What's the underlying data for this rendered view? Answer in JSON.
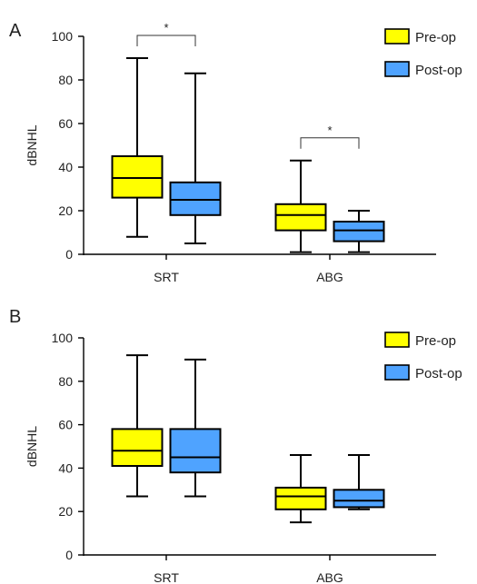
{
  "colors": {
    "pre": "#FFFF00",
    "post": "#4FA3FF",
    "stroke": "#000000",
    "bracket": "#333333"
  },
  "chart_data": [
    {
      "type": "box",
      "panel": "A",
      "categories": [
        "SRT",
        "ABG"
      ],
      "ylabel": "dBNHL",
      "ylim": [
        0,
        100
      ],
      "yticks": [
        0,
        20,
        40,
        60,
        80,
        100
      ],
      "legend_position": "top-right",
      "series": [
        {
          "name": "Pre-op",
          "color": "#FFFF00",
          "boxes": [
            {
              "min": 8,
              "q1": 26,
              "median": 35,
              "q3": 45,
              "max": 90
            },
            {
              "min": 1,
              "q1": 11,
              "median": 18,
              "q3": 23,
              "max": 43
            }
          ]
        },
        {
          "name": "Post-op",
          "color": "#4FA3FF",
          "boxes": [
            {
              "min": 5,
              "q1": 18,
              "median": 25,
              "q3": 33,
              "max": 83
            },
            {
              "min": 1,
              "q1": 6,
              "median": 11,
              "q3": 15,
              "max": 20
            }
          ]
        }
      ],
      "annotations": [
        {
          "category": "SRT",
          "text": "*"
        },
        {
          "category": "ABG",
          "text": "*"
        }
      ]
    },
    {
      "type": "box",
      "panel": "B",
      "categories": [
        "SRT",
        "ABG"
      ],
      "ylabel": "dBNHL",
      "ylim": [
        0,
        100
      ],
      "yticks": [
        0,
        20,
        40,
        60,
        80,
        100
      ],
      "legend_position": "top-right",
      "series": [
        {
          "name": "Pre-op",
          "color": "#FFFF00",
          "boxes": [
            {
              "min": 27,
              "q1": 41,
              "median": 48,
              "q3": 58,
              "max": 92
            },
            {
              "min": 15,
              "q1": 21,
              "median": 27,
              "q3": 31,
              "max": 46
            }
          ]
        },
        {
          "name": "Post-op",
          "color": "#4FA3FF",
          "boxes": [
            {
              "min": 27,
              "q1": 38,
              "median": 45,
              "q3": 58,
              "max": 90
            },
            {
              "min": 21,
              "q1": 22,
              "median": 25,
              "q3": 30,
              "max": 46
            }
          ]
        }
      ],
      "annotations": []
    }
  ]
}
